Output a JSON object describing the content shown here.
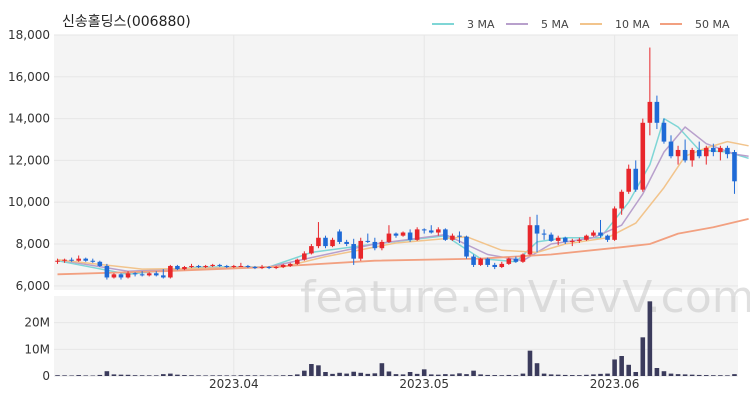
{
  "title": "신송홀딩스(006880)",
  "watermark": "feature.enVievV.com",
  "colors": {
    "up": "#e8262b",
    "down": "#1f6ad6",
    "volume": "#3b3b5c",
    "grid": "#e6e6e6",
    "panel_bg": "#f4f4f4"
  },
  "chart_data": {
    "type": "candlestick",
    "price_axis": {
      "ylim": [
        5800,
        18000
      ],
      "ticks": [
        6000,
        8000,
        10000,
        12000,
        14000,
        16000,
        18000
      ],
      "tick_labels": [
        "6,000",
        "8,000",
        "10,000",
        "12,000",
        "14,000",
        "16,000",
        "18,000"
      ]
    },
    "volume_axis": {
      "ylim": [
        0,
        30000000
      ],
      "ticks": [
        0,
        10000000,
        20000000
      ],
      "tick_labels": [
        "0",
        "10M",
        "20M"
      ]
    },
    "x_tick_labels": [
      {
        "index": 25,
        "label": "2023.04"
      },
      {
        "index": 52,
        "label": "2023.05"
      },
      {
        "index": 79,
        "label": "2023.06"
      }
    ],
    "legend": [
      {
        "name": "3 MA",
        "color": "#7fd6d6"
      },
      {
        "name": "5 MA",
        "color": "#b8a0cc"
      },
      {
        "name": "10 MA",
        "color": "#f2c48c"
      },
      {
        "name": "50 MA",
        "color": "#f2a080"
      }
    ],
    "candles": [
      [
        7150,
        7300,
        7050,
        7200,
        300000
      ],
      [
        7200,
        7300,
        7100,
        7250,
        250000
      ],
      [
        7250,
        7350,
        7150,
        7200,
        200000
      ],
      [
        7200,
        7450,
        7150,
        7300,
        350000
      ],
      [
        7300,
        7350,
        7150,
        7200,
        220000
      ],
      [
        7200,
        7300,
        7100,
        7150,
        180000
      ],
      [
        7150,
        7200,
        6900,
        6950,
        400000
      ],
      [
        6950,
        7050,
        6300,
        6400,
        1800000
      ],
      [
        6400,
        6600,
        6350,
        6550,
        600000
      ],
      [
        6550,
        6600,
        6300,
        6400,
        500000
      ],
      [
        6400,
        6700,
        6350,
        6600,
        450000
      ],
      [
        6600,
        6650,
        6450,
        6550,
        300000
      ],
      [
        6550,
        6700,
        6450,
        6500,
        280000
      ],
      [
        6500,
        6650,
        6450,
        6600,
        260000
      ],
      [
        6600,
        6700,
        6450,
        6500,
        250000
      ],
      [
        6500,
        6800,
        6350,
        6400,
        700000
      ],
      [
        6400,
        7000,
        6350,
        6950,
        900000
      ],
      [
        6950,
        7000,
        6750,
        6800,
        500000
      ],
      [
        6800,
        6950,
        6750,
        6900,
        350000
      ],
      [
        6900,
        7050,
        6850,
        6950,
        300000
      ],
      [
        6950,
        7000,
        6850,
        6900,
        250000
      ],
      [
        6900,
        7000,
        6850,
        6950,
        220000
      ],
      [
        6950,
        7050,
        6900,
        7000,
        240000
      ],
      [
        7000,
        7050,
        6900,
        6950,
        260000
      ],
      [
        6950,
        7000,
        6850,
        6900,
        230000
      ],
      [
        6900,
        7000,
        6850,
        6950,
        210000
      ],
      [
        6950,
        7100,
        6900,
        6950,
        300000
      ],
      [
        6950,
        7000,
        6850,
        6900,
        280000
      ],
      [
        6900,
        6950,
        6800,
        6850,
        260000
      ],
      [
        6850,
        7000,
        6800,
        6900,
        250000
      ],
      [
        6900,
        6950,
        6800,
        6850,
        240000
      ],
      [
        6850,
        6950,
        6800,
        6900,
        230000
      ],
      [
        6900,
        7050,
        6850,
        7000,
        280000
      ],
      [
        6950,
        7100,
        6900,
        7050,
        350000
      ],
      [
        7050,
        7300,
        7000,
        7250,
        600000
      ],
      [
        7250,
        7650,
        7200,
        7550,
        2000000
      ],
      [
        7550,
        8000,
        7500,
        7900,
        4500000
      ],
      [
        7900,
        9050,
        7800,
        8300,
        4000000
      ],
      [
        8300,
        8400,
        7800,
        7900,
        1500000
      ],
      [
        7900,
        8300,
        7850,
        8200,
        800000
      ],
      [
        8600,
        8700,
        8000,
        8100,
        1200000
      ],
      [
        8100,
        8200,
        7900,
        8000,
        900000
      ],
      [
        8000,
        8250,
        7000,
        7300,
        1600000
      ],
      [
        7300,
        8300,
        7200,
        8150,
        1200000
      ],
      [
        8150,
        8500,
        8050,
        8100,
        800000
      ],
      [
        8100,
        8300,
        7700,
        7800,
        1000000
      ],
      [
        7800,
        8200,
        7700,
        8100,
        4800000
      ],
      [
        8100,
        8900,
        8050,
        8500,
        1700000
      ],
      [
        8500,
        8550,
        8300,
        8400,
        700000
      ],
      [
        8400,
        8600,
        8350,
        8550,
        600000
      ],
      [
        8550,
        8700,
        8100,
        8200,
        1500000
      ],
      [
        8200,
        8800,
        8150,
        8700,
        800000
      ],
      [
        8700,
        8750,
        8500,
        8650,
        2500000
      ],
      [
        8650,
        8900,
        8500,
        8550,
        600000
      ],
      [
        8550,
        8800,
        8400,
        8700,
        500000
      ],
      [
        8700,
        8750,
        8150,
        8200,
        700000
      ],
      [
        8200,
        8500,
        8150,
        8400,
        600000
      ],
      [
        8400,
        8600,
        8050,
        8350,
        1000000
      ],
      [
        8350,
        8400,
        7300,
        7400,
        700000
      ],
      [
        7400,
        7500,
        6900,
        7000,
        2000000
      ],
      [
        7000,
        7350,
        6950,
        7300,
        600000
      ],
      [
        7300,
        7350,
        6900,
        7000,
        400000
      ],
      [
        7000,
        7100,
        6800,
        6900,
        350000
      ],
      [
        6900,
        7150,
        6850,
        7050,
        300000
      ],
      [
        7050,
        7350,
        7000,
        7300,
        400000
      ],
      [
        7300,
        7400,
        7100,
        7150,
        300000
      ],
      [
        7150,
        7550,
        7100,
        7500,
        900000
      ],
      [
        7500,
        9300,
        7450,
        8900,
        9500000
      ],
      [
        8900,
        9400,
        7600,
        8500,
        4800000
      ],
      [
        8500,
        8700,
        8200,
        8450,
        900000
      ],
      [
        8450,
        8550,
        8100,
        8150,
        600000
      ],
      [
        8150,
        8400,
        7950,
        8300,
        500000
      ],
      [
        8300,
        8350,
        8000,
        8100,
        400000
      ],
      [
        8100,
        8250,
        7900,
        8150,
        350000
      ],
      [
        8150,
        8300,
        8050,
        8200,
        330000
      ],
      [
        8200,
        8450,
        8150,
        8400,
        450000
      ],
      [
        8400,
        8650,
        8350,
        8550,
        600000
      ],
      [
        8550,
        9150,
        8300,
        8400,
        800000
      ],
      [
        8400,
        8450,
        8100,
        8200,
        900000
      ],
      [
        8200,
        9800,
        8150,
        9700,
        6200000
      ],
      [
        9700,
        10600,
        9400,
        10500,
        7500000
      ],
      [
        10500,
        11800,
        10400,
        11600,
        4200000
      ],
      [
        11600,
        12000,
        10500,
        10600,
        1500000
      ],
      [
        10600,
        14000,
        10500,
        13800,
        14500000
      ],
      [
        13800,
        17400,
        13200,
        14800,
        28000000
      ],
      [
        14800,
        15100,
        13500,
        13800,
        3000000
      ],
      [
        13800,
        14000,
        12800,
        12900,
        1800000
      ],
      [
        12900,
        13200,
        12100,
        12200,
        900000
      ],
      [
        12200,
        12700,
        11800,
        12500,
        700000
      ],
      [
        12500,
        13000,
        11900,
        12000,
        600000
      ],
      [
        12000,
        12600,
        11700,
        12500,
        500000
      ],
      [
        12500,
        12900,
        12100,
        12200,
        400000
      ],
      [
        12200,
        12700,
        11800,
        12600,
        350000
      ],
      [
        12600,
        12800,
        12200,
        12400,
        300000
      ],
      [
        12400,
        12700,
        12000,
        12600,
        300000
      ],
      [
        12600,
        12700,
        12100,
        12300,
        250000
      ],
      [
        12400,
        12500,
        10400,
        11000,
        700000
      ]
    ],
    "ma_lines": {
      "3 MA": [
        [
          0,
          7200
        ],
        [
          10,
          6550
        ],
        [
          20,
          6900
        ],
        [
          30,
          6900
        ],
        [
          36,
          7600
        ],
        [
          45,
          8000
        ],
        [
          55,
          8400
        ],
        [
          60,
          7300
        ],
        [
          65,
          7150
        ],
        [
          68,
          8100
        ],
        [
          72,
          8300
        ],
        [
          77,
          8300
        ],
        [
          81,
          10000
        ],
        [
          84,
          11800
        ],
        [
          86,
          14000
        ],
        [
          88,
          13600
        ],
        [
          91,
          12500
        ],
        [
          95,
          12400
        ],
        [
          98,
          12100
        ]
      ],
      "5 MA": [
        [
          0,
          7250
        ],
        [
          10,
          6700
        ],
        [
          20,
          6850
        ],
        [
          30,
          6900
        ],
        [
          36,
          7350
        ],
        [
          45,
          8000
        ],
        [
          55,
          8450
        ],
        [
          61,
          7500
        ],
        [
          66,
          7200
        ],
        [
          70,
          8000
        ],
        [
          76,
          8300
        ],
        [
          80,
          8900
        ],
        [
          83,
          10400
        ],
        [
          86,
          12400
        ],
        [
          89,
          13600
        ],
        [
          92,
          12800
        ],
        [
          96,
          12300
        ],
        [
          98,
          12200
        ]
      ],
      "10 MA": [
        [
          0,
          7250
        ],
        [
          12,
          6800
        ],
        [
          22,
          6850
        ],
        [
          32,
          6900
        ],
        [
          38,
          7400
        ],
        [
          48,
          8050
        ],
        [
          58,
          8350
        ],
        [
          63,
          7700
        ],
        [
          68,
          7600
        ],
        [
          72,
          8000
        ],
        [
          78,
          8300
        ],
        [
          82,
          9000
        ],
        [
          86,
          10700
        ],
        [
          89,
          12200
        ],
        [
          92,
          12600
        ],
        [
          95,
          12900
        ],
        [
          98,
          12700
        ]
      ],
      "50 MA": [
        [
          0,
          6550
        ],
        [
          15,
          6700
        ],
        [
          30,
          6900
        ],
        [
          45,
          7200
        ],
        [
          60,
          7300
        ],
        [
          70,
          7500
        ],
        [
          80,
          7850
        ],
        [
          84,
          8000
        ],
        [
          88,
          8500
        ],
        [
          93,
          8800
        ],
        [
          98,
          9200
        ]
      ]
    }
  }
}
